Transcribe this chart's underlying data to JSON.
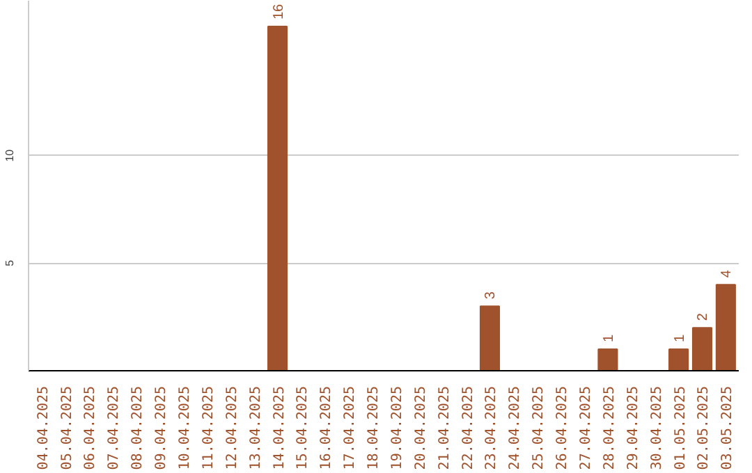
{
  "chart_data": {
    "type": "bar",
    "categories": [
      "04.04.2025",
      "05.04.2025",
      "06.04.2025",
      "07.04.2025",
      "08.04.2025",
      "09.04.2025",
      "10.04.2025",
      "11.04.2025",
      "12.04.2025",
      "13.04.2025",
      "14.04.2025",
      "15.04.2025",
      "16.04.2025",
      "17.04.2025",
      "18.04.2025",
      "19.04.2025",
      "20.04.2025",
      "21.04.2025",
      "22.04.2025",
      "23.04.2025",
      "24.04.2025",
      "25.04.2025",
      "26.04.2025",
      "27.04.2025",
      "28.04.2025",
      "29.04.2025",
      "30.04.2025",
      "01.05.2025",
      "02.05.2025",
      "03.05.2025"
    ],
    "values": [
      0,
      0,
      0,
      0,
      0,
      0,
      0,
      0,
      0,
      0,
      16,
      0,
      0,
      0,
      0,
      0,
      0,
      0,
      0,
      3,
      0,
      0,
      0,
      0,
      1,
      0,
      0,
      1,
      2,
      4
    ],
    "value_labels": [
      null,
      null,
      null,
      null,
      null,
      null,
      null,
      null,
      null,
      null,
      "16",
      null,
      null,
      null,
      null,
      null,
      null,
      null,
      null,
      "3",
      null,
      null,
      null,
      null,
      "1",
      null,
      null,
      "1",
      "2",
      "4"
    ],
    "color": "#a0522d",
    "ylim": [
      0,
      17.2
    ],
    "yticks": [
      5,
      10
    ],
    "grid": "y"
  }
}
